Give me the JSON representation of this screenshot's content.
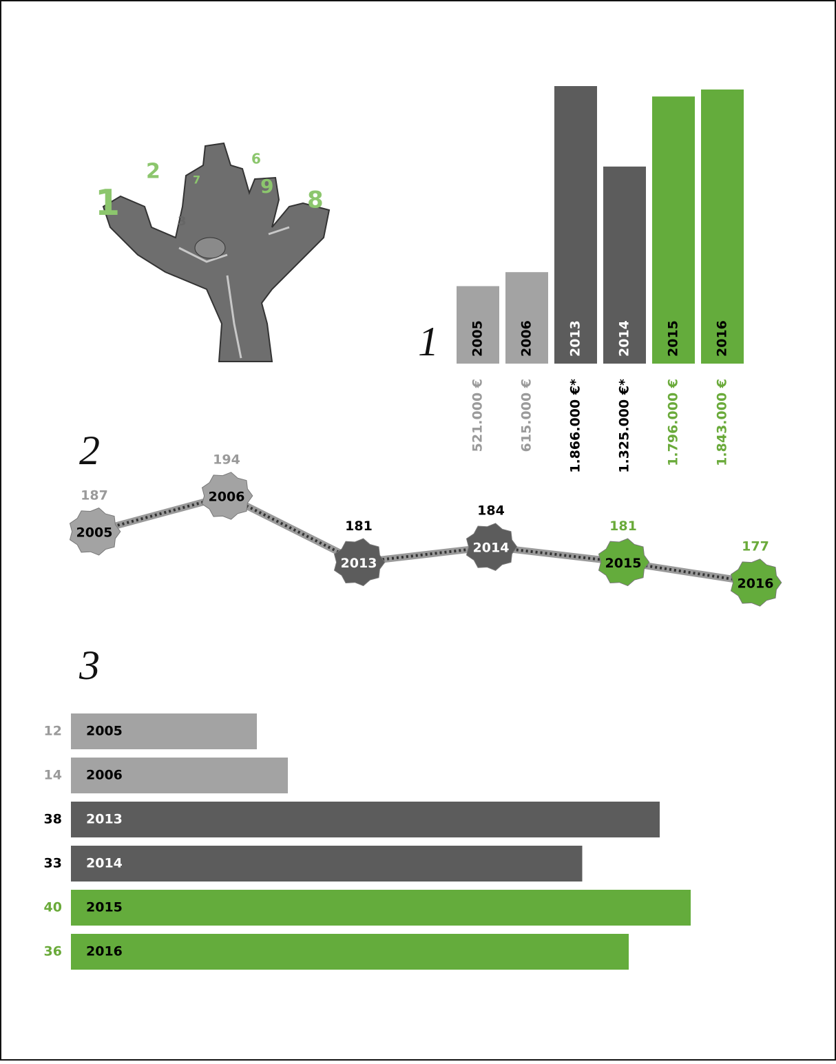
{
  "illustration": {
    "labels": [
      "1",
      "2",
      "7",
      "3",
      "6",
      "9",
      "8"
    ]
  },
  "chart_data": [
    {
      "type": "bar",
      "title": "1",
      "categories": [
        "2005",
        "2006",
        "2013",
        "2014",
        "2015",
        "2016"
      ],
      "values": [
        521000,
        615000,
        1866000,
        1325000,
        1796000,
        1843000
      ],
      "value_labels": [
        "521.000 €",
        "615.000 €",
        "1.866.000 €*",
        "1.325.000 €*",
        "1.796.000 €",
        "1.843.000 €"
      ],
      "colors": [
        "#a3a3a3",
        "#a3a3a3",
        "#5c5c5c",
        "#5c5c5c",
        "#64ac3c",
        "#64ac3c"
      ],
      "category_label_colors": [
        "#000000",
        "#000000",
        "#ffffff",
        "#ffffff",
        "#000000",
        "#000000"
      ],
      "value_label_colors": [
        "#9a9a9a",
        "#9a9a9a",
        "#000000",
        "#000000",
        "#6aaa3a",
        "#6aaa3a"
      ]
    },
    {
      "type": "line",
      "title": "2",
      "categories": [
        "2005",
        "2006",
        "2013",
        "2014",
        "2015",
        "2016"
      ],
      "values": [
        187,
        194,
        181,
        184,
        181,
        177
      ],
      "colors": [
        "#a3a3a3",
        "#a3a3a3",
        "#5c5c5c",
        "#5c5c5c",
        "#64ac3c",
        "#64ac3c"
      ],
      "category_label_colors": [
        "#000000",
        "#000000",
        "#ffffff",
        "#ffffff",
        "#000000",
        "#000000"
      ],
      "value_label_colors": [
        "#9a9a9a",
        "#9a9a9a",
        "#000000",
        "#000000",
        "#6aaa3a",
        "#6aaa3a"
      ]
    },
    {
      "type": "hbar",
      "title": "3",
      "categories": [
        "2005",
        "2006",
        "2013",
        "2014",
        "2015",
        "2016"
      ],
      "values": [
        12,
        14,
        38,
        33,
        40,
        36
      ],
      "colors": [
        "#a3a3a3",
        "#a3a3a3",
        "#5c5c5c",
        "#5c5c5c",
        "#64ac3c",
        "#64ac3c"
      ],
      "category_label_colors": [
        "#000000",
        "#000000",
        "#ffffff",
        "#ffffff",
        "#000000",
        "#000000"
      ],
      "value_label_colors": [
        "#9a9a9a",
        "#9a9a9a",
        "#000000",
        "#000000",
        "#6aaa3a",
        "#6aaa3a"
      ]
    }
  ]
}
